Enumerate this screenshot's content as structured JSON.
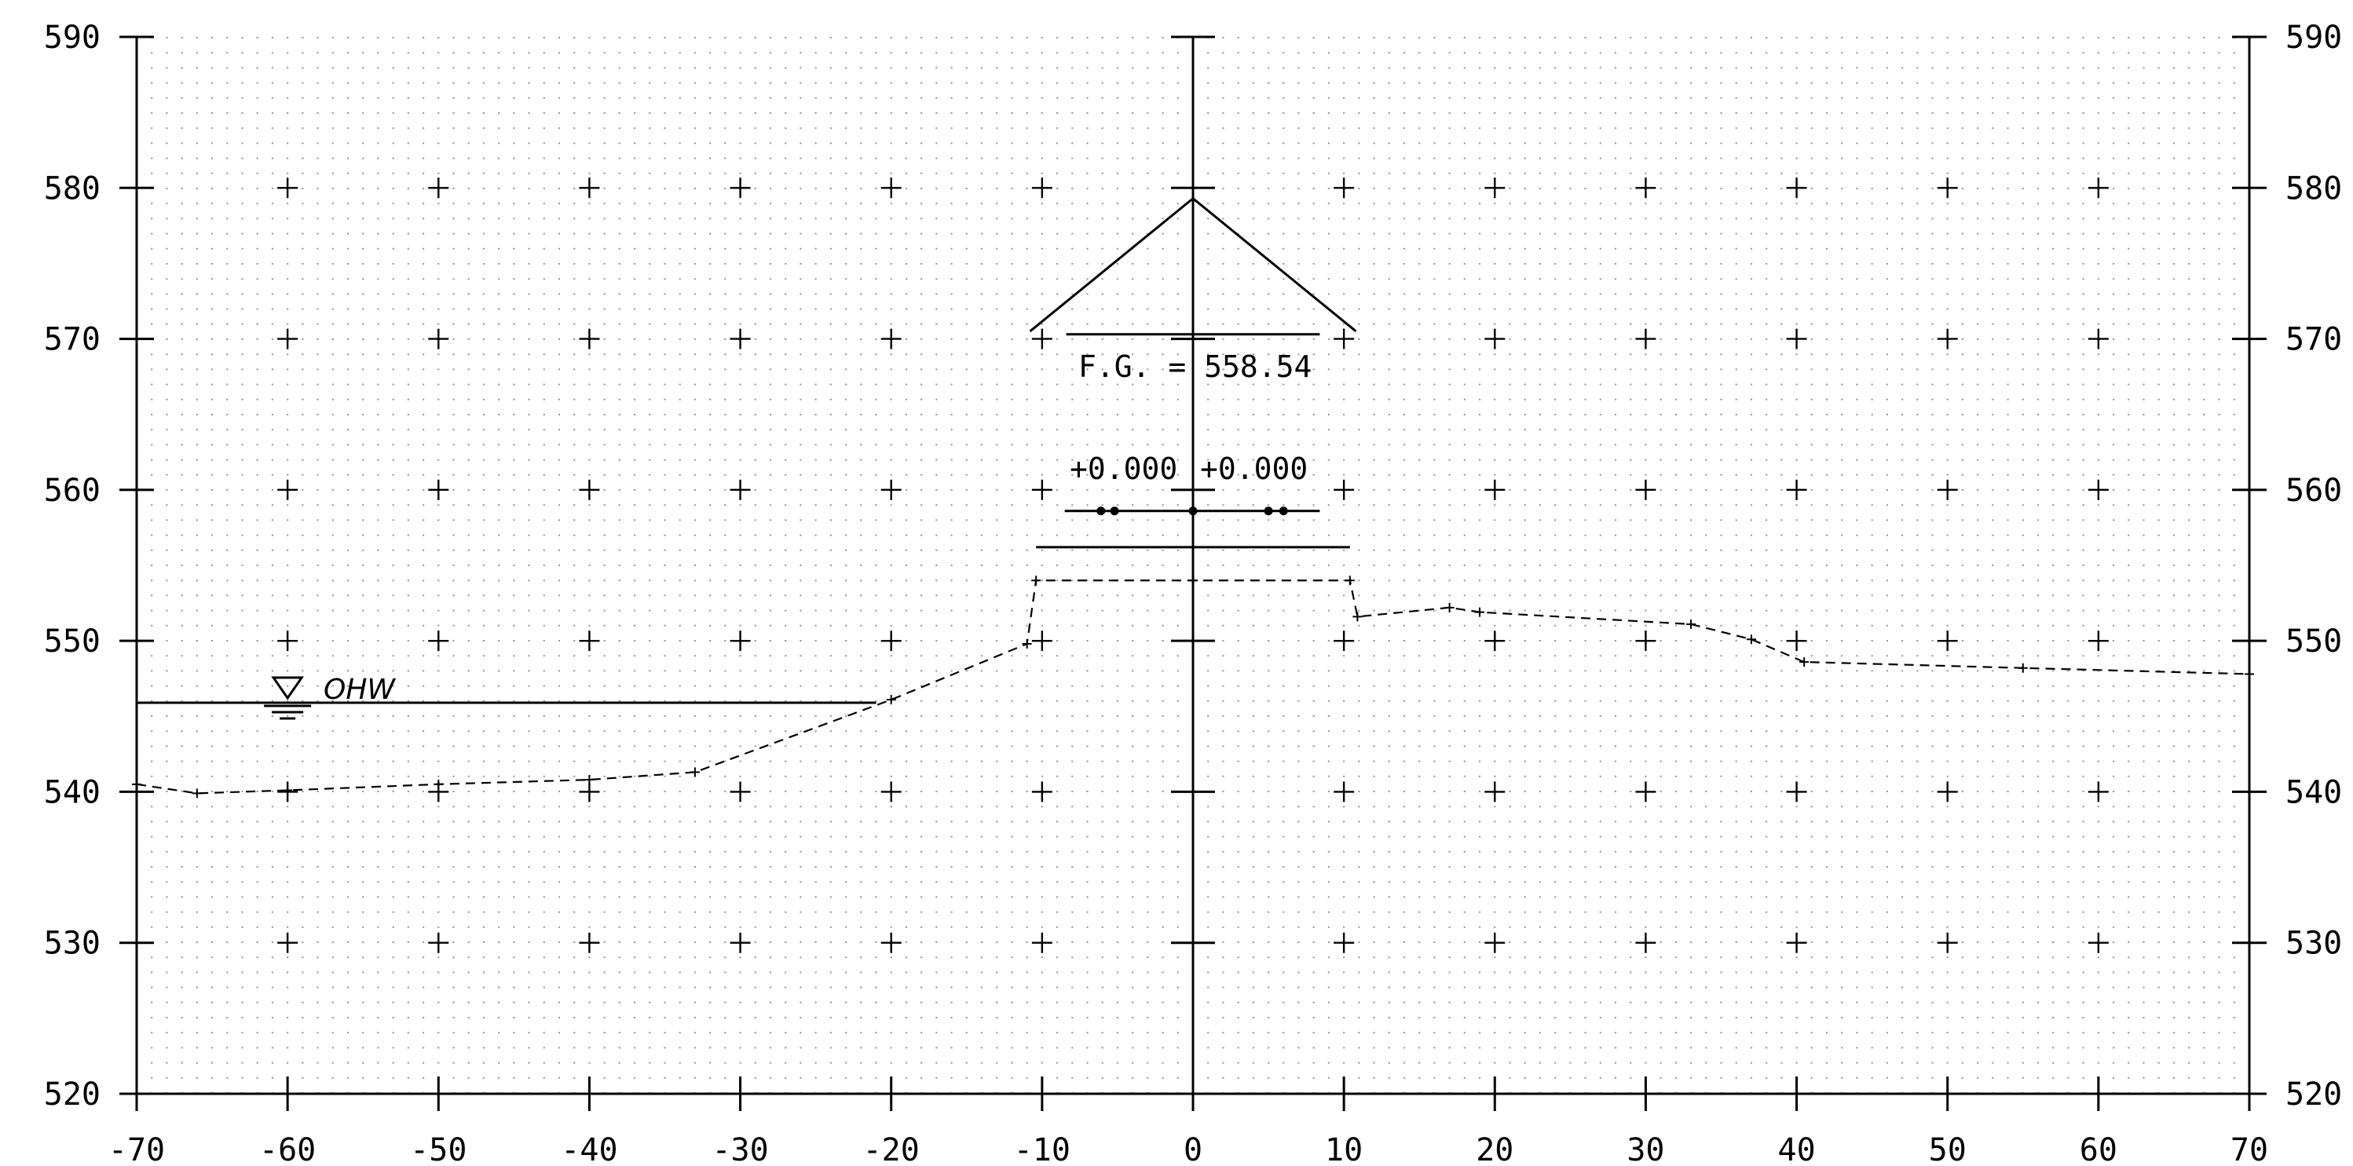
{
  "chart_data": {
    "type": "cross-section",
    "x_ticks": [
      -70,
      -60,
      -50,
      -40,
      -30,
      -20,
      -10,
      0,
      10,
      20,
      30,
      40,
      50,
      60,
      70
    ],
    "x_tick_labels": [
      "-70",
      "-60",
      "-50",
      "-40",
      "-30",
      "-20",
      "-10",
      "0",
      "10",
      "20",
      "30",
      "40",
      "50",
      "60",
      "70"
    ],
    "y_ticks": [
      520,
      530,
      540,
      550,
      560,
      570,
      580,
      590
    ],
    "y_tick_labels": [
      "520",
      "530",
      "540",
      "550",
      "560",
      "570",
      "580",
      "590"
    ],
    "xlim": [
      -70,
      70
    ],
    "ylim": [
      520,
      590
    ],
    "grid": true,
    "existing_ground": [
      [
        -70,
        540.5
      ],
      [
        -66,
        539.9
      ],
      [
        -60,
        540.1
      ],
      [
        -50,
        540.5
      ],
      [
        -40,
        540.8
      ],
      [
        -33,
        541.3
      ],
      [
        -20,
        546.1
      ],
      [
        -11,
        549.8
      ],
      [
        -10.4,
        554.0
      ],
      [
        0,
        554.0
      ],
      [
        10.4,
        554.0
      ],
      [
        10.9,
        551.6
      ],
      [
        17,
        552.2
      ],
      [
        19,
        551.9
      ],
      [
        33,
        551.1
      ],
      [
        37,
        550.1
      ],
      [
        40.5,
        548.6
      ],
      [
        55,
        548.2
      ],
      [
        70,
        547.8
      ]
    ],
    "water_line": {
      "label": "OHW",
      "elevation": 545.9,
      "x_start": -70,
      "x_end": -21
    },
    "vertical_curve_apex": {
      "x": 0,
      "y": 579.3
    },
    "vertical_curve_left_end": {
      "x": -10.8,
      "y": 570.5
    },
    "vertical_curve_right_end": {
      "x": 10.8,
      "y": 570.5
    },
    "fg_line": {
      "x_start": -8.4,
      "x_end": 8.4,
      "y": 570.3
    },
    "fg_label": "F.G. = 558.54",
    "offset_labels": [
      "+0.000",
      "+0.000"
    ],
    "profile_line": {
      "x_start": -11.5,
      "x_end": 8.4,
      "y": 558.6
    },
    "profile_points": [
      -6.1,
      -5.2,
      0,
      5.0,
      6.0
    ],
    "lower_line": {
      "x_start": -10.4,
      "x_end": 10.4,
      "y": 556.2
    }
  }
}
